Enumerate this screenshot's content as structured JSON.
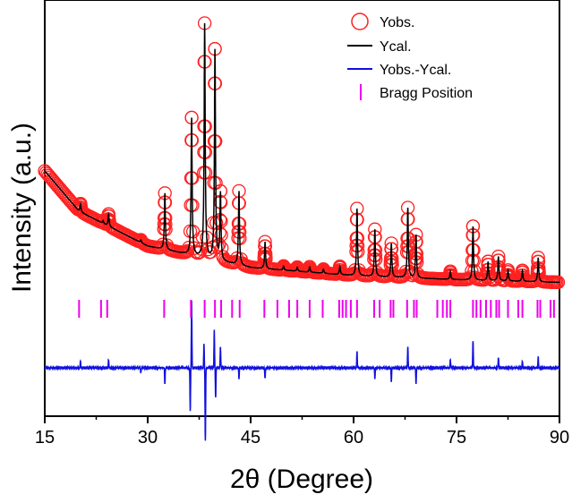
{
  "chart_data": {
    "type": "line",
    "xlabel": "2θ (Degree)",
    "ylabel": "Intensity (a.u.)",
    "xlim": [
      15,
      90
    ],
    "x_ticks": [
      "15",
      "30",
      "45",
      "60",
      "75",
      "90"
    ],
    "legend": {
      "position": "top-right"
    },
    "colors": {
      "obs": "#ff2020",
      "cal": "#000000",
      "diff": "#1010e0",
      "bragg": "#ee00ee"
    },
    "series": [
      {
        "name": "Yobs.",
        "kind": "open-circles"
      },
      {
        "name": "Ycal.",
        "kind": "line"
      },
      {
        "name": "Yobs.-Ycal.",
        "kind": "line"
      },
      {
        "name": "Bragg Position",
        "kind": "tick"
      }
    ],
    "background": {
      "x": [
        15,
        20,
        30,
        45,
        60,
        75,
        90
      ],
      "y": [
        0.86,
        0.56,
        0.3,
        0.14,
        0.08,
        0.05,
        0.03
      ]
    },
    "peaks": [
      {
        "x": 20.2,
        "h": 0.06
      },
      {
        "x": 23.5,
        "h": 0.02
      },
      {
        "x": 24.3,
        "h": 0.09
      },
      {
        "x": 29.0,
        "h": 0.02
      },
      {
        "x": 32.5,
        "h": 0.42
      },
      {
        "x": 36.4,
        "h": 1.02
      },
      {
        "x": 38.3,
        "h": 1.74
      },
      {
        "x": 39.8,
        "h": 1.56
      },
      {
        "x": 40.6,
        "h": 0.5
      },
      {
        "x": 43.3,
        "h": 0.55
      },
      {
        "x": 47.1,
        "h": 0.2
      },
      {
        "x": 49.8,
        "h": 0.03
      },
      {
        "x": 51.8,
        "h": 0.03
      },
      {
        "x": 53.6,
        "h": 0.04
      },
      {
        "x": 55.6,
        "h": 0.03
      },
      {
        "x": 58.0,
        "h": 0.06
      },
      {
        "x": 60.5,
        "h": 0.5
      },
      {
        "x": 63.1,
        "h": 0.35
      },
      {
        "x": 65.5,
        "h": 0.25
      },
      {
        "x": 67.9,
        "h": 0.52
      },
      {
        "x": 69.1,
        "h": 0.32
      },
      {
        "x": 74.1,
        "h": 0.06
      },
      {
        "x": 77.4,
        "h": 0.4
      },
      {
        "x": 79.6,
        "h": 0.14
      },
      {
        "x": 81.1,
        "h": 0.18
      },
      {
        "x": 82.5,
        "h": 0.08
      },
      {
        "x": 84.6,
        "h": 0.08
      },
      {
        "x": 86.9,
        "h": 0.18
      }
    ],
    "bragg_positions": [
      20.0,
      23.2,
      24.1,
      32.4,
      36.3,
      38.3,
      39.8,
      40.7,
      42.3,
      43.4,
      47.0,
      48.9,
      50.6,
      51.8,
      53.6,
      55.5,
      57.9,
      58.4,
      58.9,
      59.6,
      60.5,
      63.0,
      63.8,
      65.4,
      65.8,
      67.8,
      68.8,
      69.2,
      72.2,
      73.0,
      73.6,
      74.1,
      77.4,
      77.9,
      78.5,
      79.3,
      80.0,
      80.8,
      81.2,
      82.5,
      84.0,
      84.6,
      86.8,
      87.2,
      88.7,
      89.2
    ],
    "difference_spikes": [
      {
        "x": 20.2,
        "d": 0.05
      },
      {
        "x": 24.3,
        "d": 0.06
      },
      {
        "x": 29.0,
        "d": -0.04
      },
      {
        "x": 32.5,
        "d": -0.12
      },
      {
        "x": 36.2,
        "d": -0.32
      },
      {
        "x": 36.4,
        "d": 0.5
      },
      {
        "x": 38.2,
        "d": 0.18
      },
      {
        "x": 38.4,
        "d": -0.54
      },
      {
        "x": 39.7,
        "d": 0.28
      },
      {
        "x": 39.9,
        "d": -0.22
      },
      {
        "x": 40.6,
        "d": 0.16
      },
      {
        "x": 43.3,
        "d": -0.08
      },
      {
        "x": 47.1,
        "d": -0.08
      },
      {
        "x": 60.5,
        "d": 0.12
      },
      {
        "x": 63.1,
        "d": -0.08
      },
      {
        "x": 65.5,
        "d": -0.1
      },
      {
        "x": 67.9,
        "d": 0.16
      },
      {
        "x": 69.1,
        "d": -0.12
      },
      {
        "x": 74.1,
        "d": 0.06
      },
      {
        "x": 77.4,
        "d": 0.2
      },
      {
        "x": 81.1,
        "d": 0.08
      },
      {
        "x": 84.6,
        "d": 0.05
      },
      {
        "x": 86.9,
        "d": 0.08
      }
    ]
  }
}
